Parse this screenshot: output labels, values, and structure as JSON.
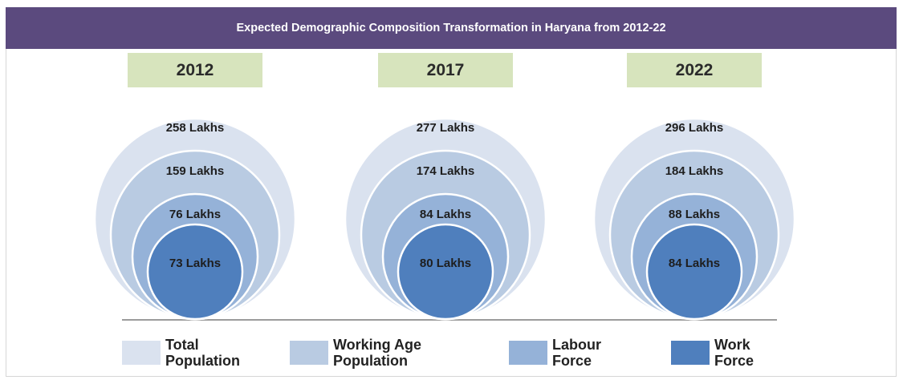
{
  "title": "Expected Demographic Composition Transformation in Haryana from 2012-22",
  "colors": {
    "total_population": "#dae2ef",
    "working_age_population": "#b9cbe2",
    "labour_force": "#95b2d8",
    "work_force": "#4f7fbd",
    "title_bar": "#5b4a7e",
    "year_box": "#d7e4bd"
  },
  "legend": [
    {
      "label": "Total Population",
      "color_key": "total_population"
    },
    {
      "label": "Working Age Population",
      "color_key": "working_age_population"
    },
    {
      "label": "Labour Force",
      "color_key": "labour_force"
    },
    {
      "label": "Work Force",
      "color_key": "work_force"
    }
  ],
  "chart_data": {
    "type": "nested-circles",
    "title": "Expected Demographic Composition Transformation in Haryana from 2012-22",
    "categories": [
      "2012",
      "2017",
      "2022"
    ],
    "unit": "Lakhs",
    "series": [
      {
        "name": "Total Population",
        "values": [
          258,
          277,
          296
        ],
        "labels": [
          "258 Lakhs",
          "277 Lakhs",
          "296 Lakhs"
        ]
      },
      {
        "name": "Working Age Population",
        "values": [
          159,
          174,
          184
        ],
        "labels": [
          "159 Lakhs",
          "174 Lakhs",
          "184 Lakhs"
        ]
      },
      {
        "name": "Labour Force",
        "values": [
          76,
          84,
          88
        ],
        "labels": [
          "76 Lakhs",
          "84 Lakhs",
          "88 Lakhs"
        ]
      },
      {
        "name": "Work Force",
        "values": [
          73,
          80,
          84
        ],
        "labels": [
          "73 Lakhs",
          "80 Lakhs",
          "84 Lakhs"
        ]
      }
    ]
  }
}
